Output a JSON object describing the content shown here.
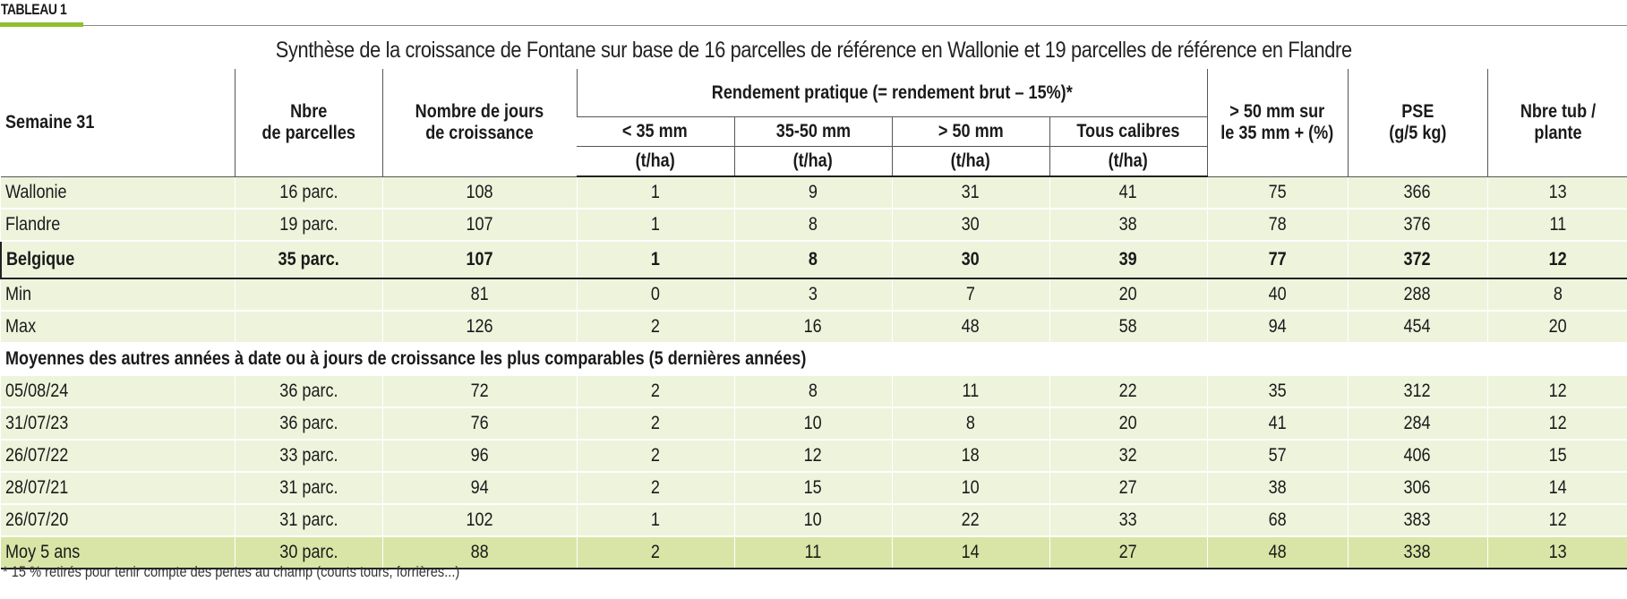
{
  "tag": "TABLEAU 1",
  "title": "Synthèse de la croissance de Fontane sur base de 16 parcelles de référence en Wallonie et 19 parcelles de référence en Flandre",
  "accent_color": "#8fbf2f",
  "row_color": "#eef3dc",
  "avg_row_color": "#d9e5a7",
  "header": {
    "col1": "Semaine 31",
    "col2_l1": "Nbre",
    "col2_l2": "de parcelles",
    "col3_l1": "Nombre de jours",
    "col3_l2": "de croissance",
    "group": "Rendement pratique (= rendement brut – 15%)*",
    "sub1": "< 35 mm",
    "sub2": "35-50 mm",
    "sub3": "> 50 mm",
    "sub4": "Tous calibres",
    "unit": "(t/ha)",
    "col8_l1": "> 50 mm sur",
    "col8_l2": "le 35 mm + (%)",
    "col9_l1": "PSE",
    "col9_l2": "(g/5 kg)",
    "col10_l1": "Nbre tub /",
    "col10_l2": "plante"
  },
  "rows": [
    [
      "Wallonie",
      "16 parc.",
      "108",
      "1",
      "9",
      "31",
      "41",
      "75",
      "366",
      "13"
    ],
    [
      "Flandre",
      "19 parc.",
      "107",
      "1",
      "8",
      "30",
      "38",
      "78",
      "376",
      "11"
    ],
    [
      "Belgique",
      "35 parc.",
      "107",
      "1",
      "8",
      "30",
      "39",
      "77",
      "372",
      "12"
    ],
    [
      "Min",
      "",
      "81",
      "0",
      "3",
      "7",
      "20",
      "40",
      "288",
      "8"
    ],
    [
      "Max",
      "",
      "126",
      "2",
      "16",
      "48",
      "58",
      "94",
      "454",
      "20"
    ]
  ],
  "section_label": "Moyennes des autres années à date ou à jours de croissance les plus comparables (5 dernières années)",
  "history_rows": [
    [
      "05/08/24",
      "36 parc.",
      "72",
      "2",
      "8",
      "11",
      "22",
      "35",
      "312",
      "12"
    ],
    [
      "31/07/23",
      "36 parc.",
      "76",
      "2",
      "10",
      "8",
      "20",
      "41",
      "284",
      "12"
    ],
    [
      "26/07/22",
      "33 parc.",
      "96",
      "2",
      "12",
      "18",
      "32",
      "57",
      "406",
      "15"
    ],
    [
      "28/07/21",
      "31 parc.",
      "94",
      "2",
      "15",
      "10",
      "27",
      "38",
      "306",
      "14"
    ],
    [
      "26/07/20",
      "31 parc.",
      "102",
      "1",
      "10",
      "22",
      "33",
      "68",
      "383",
      "12"
    ]
  ],
  "average_row": [
    "Moy 5 ans",
    "30 parc.",
    "88",
    "2",
    "11",
    "14",
    "27",
    "48",
    "338",
    "13"
  ],
  "footnote": "* 15 % retirés pour tenir compte des pertes au champ (courts tours, forrières...)"
}
